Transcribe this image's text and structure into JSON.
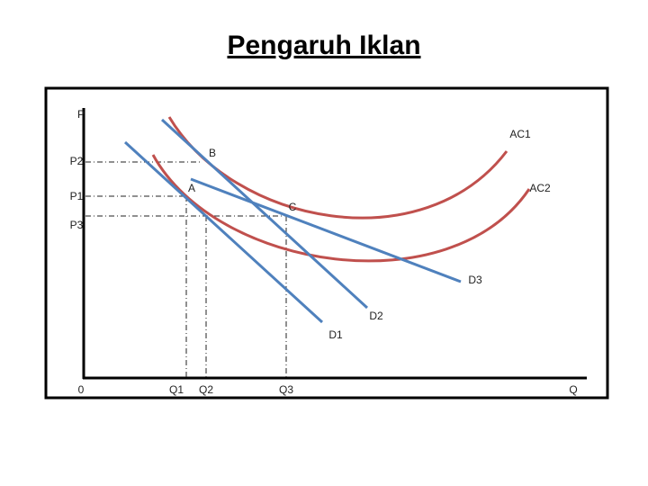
{
  "title": "Pengaruh Iklan",
  "axes": {
    "y": "P",
    "x": "Q",
    "origin": "0"
  },
  "price_levels": [
    "P2",
    "P1",
    "P3"
  ],
  "quantity_levels": [
    "Q1",
    "Q2",
    "Q3"
  ],
  "points": [
    "A",
    "B",
    "C"
  ],
  "curves": [
    "AC1",
    "AC2",
    "D1",
    "D2",
    "D3"
  ]
}
